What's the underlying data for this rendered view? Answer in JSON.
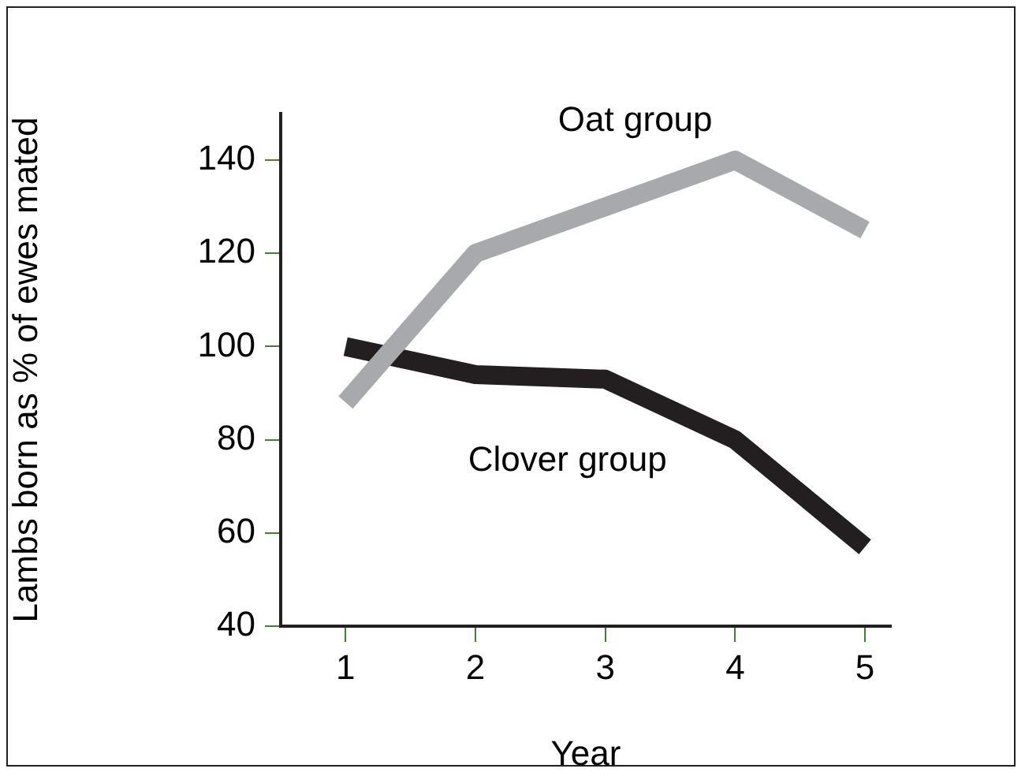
{
  "chart_data": {
    "type": "line",
    "xlabel": "Year",
    "ylabel": "Lambs born as % of ewes mated",
    "x": [
      1,
      2,
      3,
      4,
      5
    ],
    "xlim": [
      0.5,
      5.2
    ],
    "xticks": [
      1,
      2,
      3,
      4,
      5
    ],
    "ylim": [
      40,
      150
    ],
    "yticks": [
      40,
      60,
      80,
      100,
      120,
      140
    ],
    "grid": false,
    "legend": false,
    "series": [
      {
        "name": "Oat group",
        "color": "#a7a9ac",
        "values": [
          88,
          120,
          130,
          140,
          125
        ]
      },
      {
        "name": "Clover group",
        "color": "#231f20",
        "values": [
          100,
          94,
          93,
          80,
          57
        ]
      }
    ]
  }
}
